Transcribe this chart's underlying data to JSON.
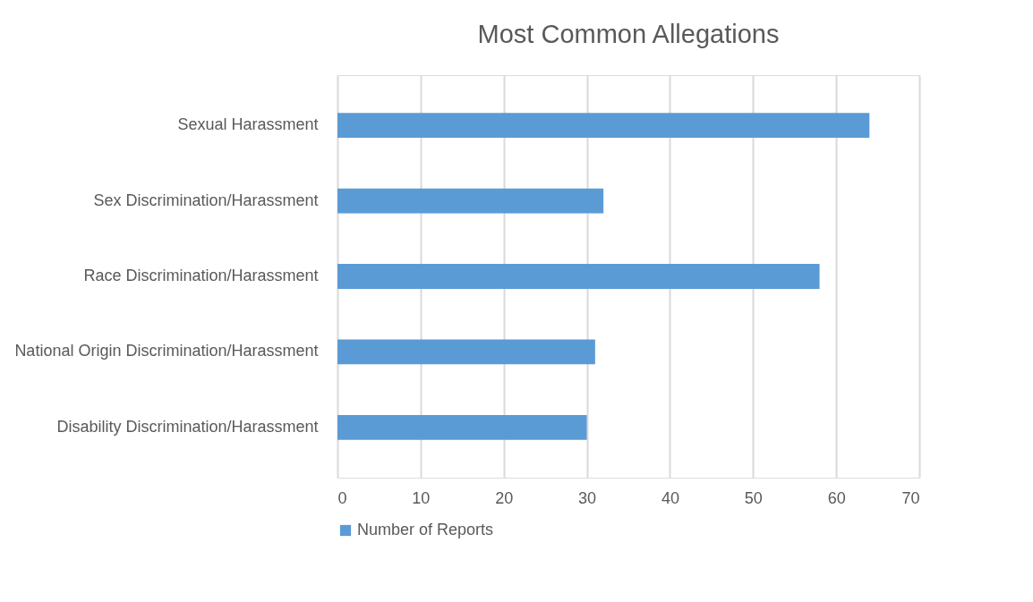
{
  "chart_data": {
    "type": "bar",
    "orientation": "horizontal",
    "title": "Most Common Allegations",
    "categories": [
      "Sexual Harassment",
      "Sex Discrimination/Harassment",
      "Race Discrimination/Harassment",
      "National Origin Discrimination/Harassment",
      "Disability Discrimination/Harassment"
    ],
    "series": [
      {
        "name": "Number of Reports",
        "color": "#5b9bd5",
        "values": [
          64,
          32,
          58,
          31,
          30
        ]
      }
    ],
    "xlim": [
      0,
      70
    ],
    "xticks": [
      0,
      10,
      20,
      30,
      40,
      50,
      60,
      70
    ],
    "grid": "x",
    "legend": "bottom"
  }
}
